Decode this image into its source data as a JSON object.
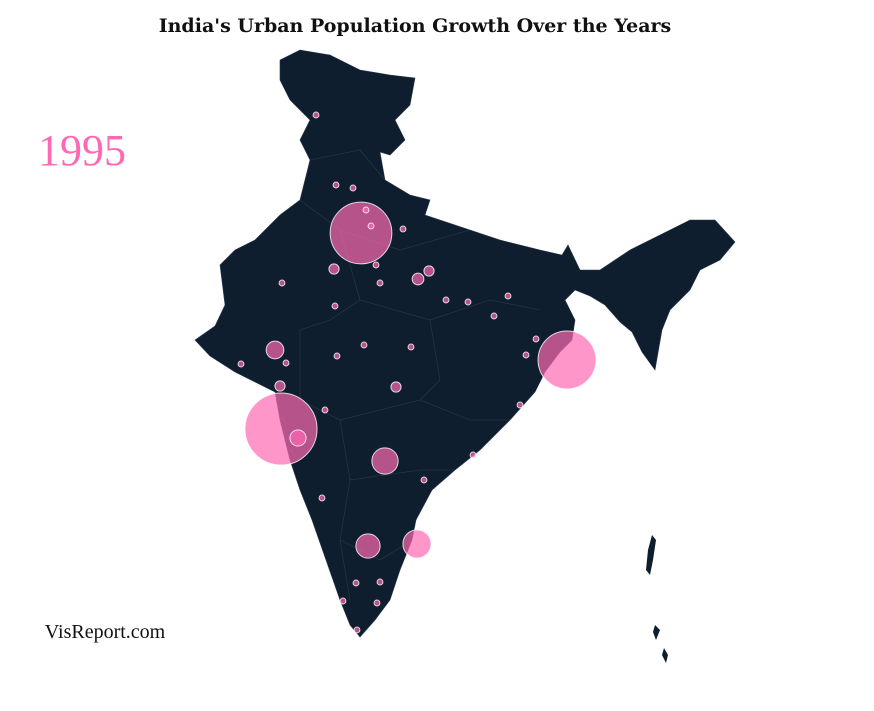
{
  "title": "India's Urban Population Growth Over the Years",
  "year": "1995",
  "credit": "VisReport.com",
  "bubble_color": "#ff69b4",
  "bubbles": [
    15,
    11,
    9.7,
    2,
    2.3,
    1.7,
    0.9,
    0.75,
    0.4,
    0.3,
    0.3,
    0.3,
    0.3,
    0.1,
    0.1,
    0.1,
    0.1,
    0.1,
    0.1,
    0.1,
    0.1,
    0.1,
    0.1,
    0.1,
    0.1,
    0.1,
    0.1,
    0.1,
    0.1,
    0.1,
    0.1,
    0.1,
    0.1,
    0.1,
    0.1,
    0.1,
    0.1,
    0.1,
    0.1,
    0.1,
    0.1,
    0.1,
    0.1,
    0.1
  ]
}
